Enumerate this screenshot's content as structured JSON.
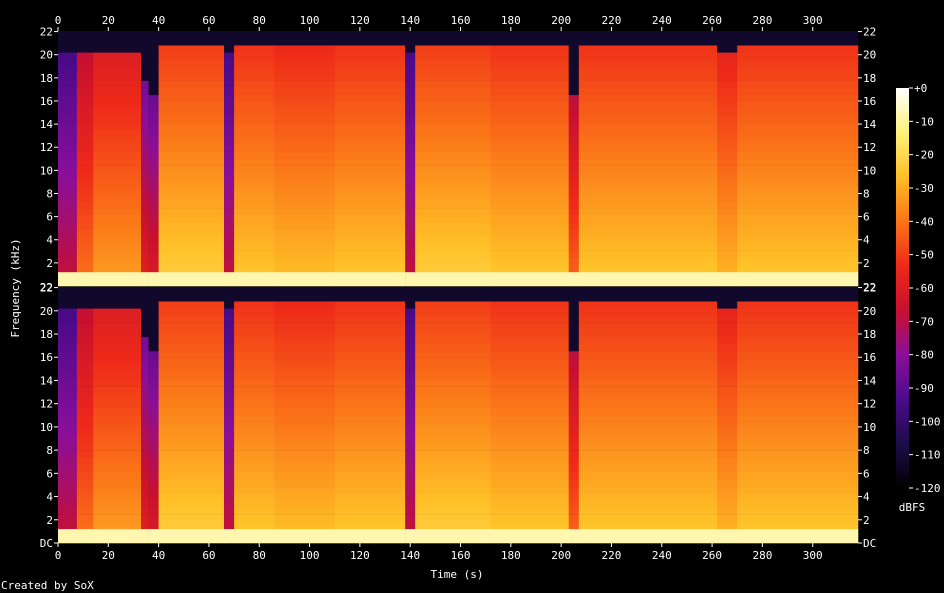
{
  "chart_data": {
    "type": "heatmap",
    "title": "",
    "xlabel": "Time (s)",
    "ylabel": "Frequency (kHz)",
    "x_ticks": [
      0,
      20,
      40,
      60,
      80,
      100,
      120,
      140,
      160,
      180,
      200,
      220,
      240,
      260,
      280,
      300
    ],
    "xlim": [
      0,
      318
    ],
    "y_ticks": [
      2,
      4,
      6,
      8,
      10,
      12,
      14,
      16,
      18,
      20,
      22
    ],
    "y_tick_labels": [
      "2",
      "4",
      "6",
      "8",
      "10",
      "12",
      "14",
      "16",
      "18",
      "20",
      "22"
    ],
    "y_bottom_label": "DC",
    "ylim": [
      0,
      22.05
    ],
    "channels": 2,
    "colorbar": {
      "label": "dBFS",
      "ticks": [
        "+0",
        "-10",
        "-20",
        "-30",
        "-40",
        "-50",
        "-60",
        "-70",
        "-80",
        "-90",
        "-100",
        "-110",
        "-120"
      ],
      "range": [
        -120,
        0
      ],
      "colors": [
        "#000000",
        "#1c0d4a",
        "#4b0b8a",
        "#8a0e9a",
        "#c8102e",
        "#ee2a18",
        "#fb7418",
        "#ffbf26",
        "#fff27a",
        "#ffffff"
      ]
    },
    "segments": [
      {
        "start": 0,
        "end": 7.5,
        "level": -85,
        "bandwidth_khz": 20.1
      },
      {
        "start": 7.5,
        "end": 14,
        "level": -58,
        "bandwidth_khz": 20.1
      },
      {
        "start": 14,
        "end": 33,
        "level": -50,
        "bandwidth_khz": 20.1
      },
      {
        "start": 33,
        "end": 36,
        "level": -75,
        "bandwidth_khz": 17.5
      },
      {
        "start": 36,
        "end": 40,
        "level": -78,
        "bandwidth_khz": 16.5
      },
      {
        "start": 40,
        "end": 66,
        "level": -40,
        "bandwidth_khz": 20.5
      },
      {
        "start": 66,
        "end": 70,
        "level": -85,
        "bandwidth_khz": 20.2
      },
      {
        "start": 70,
        "end": 86,
        "level": -42,
        "bandwidth_khz": 20.5
      },
      {
        "start": 86,
        "end": 110,
        "level": -44,
        "bandwidth_khz": 20.5
      },
      {
        "start": 110,
        "end": 138,
        "level": -42,
        "bandwidth_khz": 20.5
      },
      {
        "start": 138,
        "end": 142,
        "level": -85,
        "bandwidth_khz": 20.2
      },
      {
        "start": 142,
        "end": 172,
        "level": -40,
        "bandwidth_khz": 20.5
      },
      {
        "start": 172,
        "end": 203,
        "level": -42,
        "bandwidth_khz": 20.5
      },
      {
        "start": 203,
        "end": 207,
        "level": -60,
        "bandwidth_khz": 16.5
      },
      {
        "start": 207,
        "end": 262,
        "level": -42,
        "bandwidth_khz": 20.5
      },
      {
        "start": 262,
        "end": 270,
        "level": -46,
        "bandwidth_khz": 19.8
      },
      {
        "start": 270,
        "end": 318,
        "level": -42,
        "bandwidth_khz": 20.5
      }
    ],
    "grid": false,
    "legend": "right"
  },
  "footer": {
    "credit": "Created by SoX"
  }
}
